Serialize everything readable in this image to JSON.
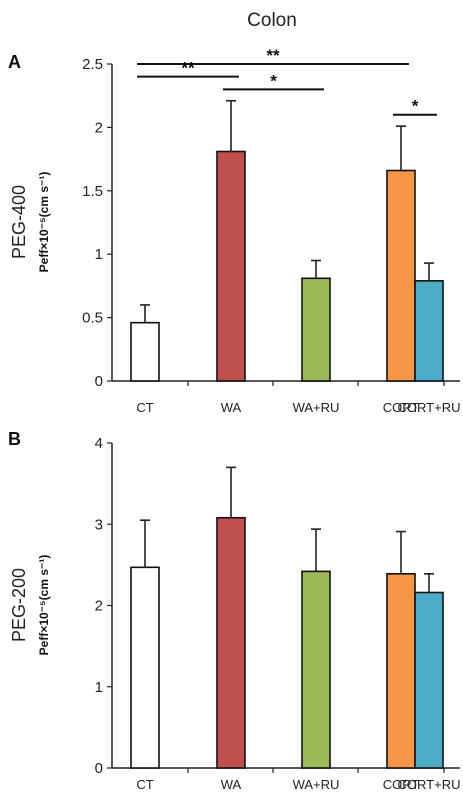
{
  "figure_title": "Colon",
  "chart_data": [
    {
      "type": "bar",
      "panel_label": "A",
      "ylabel_main": "PEG-400",
      "ylabel_unit": "Peff×10⁻⁵(cm s⁻¹)",
      "categories": [
        "CT",
        "WA",
        "WA+RU",
        "CORT",
        "CORT+RU"
      ],
      "values": [
        0.46,
        1.81,
        0.81,
        1.66,
        0.79
      ],
      "errors": [
        0.14,
        0.4,
        0.14,
        0.35,
        0.14
      ],
      "colors": [
        "#ffffff",
        "#c0504d",
        "#9bbb59",
        "#f79646",
        "#4bacc6"
      ],
      "ylim": [
        0,
        2.5
      ],
      "yticks": [
        "0",
        "0.5",
        "1",
        "1.5",
        "2",
        "2.5"
      ],
      "yticks_values": [
        0,
        0.5,
        1,
        1.5,
        2,
        2.5
      ],
      "significance": [
        {
          "from": 0,
          "to": 3,
          "label": "**",
          "level": 2.5
        },
        {
          "from": 0,
          "to": 1,
          "label": "**",
          "level": 2.4
        },
        {
          "from": 1,
          "to": 2,
          "label": "*",
          "level": 2.3
        },
        {
          "from": 3,
          "to": 4,
          "label": "*",
          "level": 2.1
        }
      ]
    },
    {
      "type": "bar",
      "panel_label": "B",
      "ylabel_main": "PEG-200",
      "ylabel_unit": "Peff×10⁻⁵(cm s⁻¹)",
      "categories": [
        "CT",
        "WA",
        "WA+RU",
        "CORT",
        "CORT+RU"
      ],
      "values": [
        2.47,
        3.08,
        2.42,
        2.39,
        2.16
      ],
      "errors": [
        0.58,
        0.62,
        0.52,
        0.52,
        0.23
      ],
      "colors": [
        "#ffffff",
        "#c0504d",
        "#9bbb59",
        "#f79646",
        "#4bacc6"
      ],
      "ylim": [
        0,
        4
      ],
      "yticks": [
        "0",
        "1",
        "2",
        "3",
        "4"
      ],
      "yticks_values": [
        0,
        1,
        2,
        3,
        4
      ],
      "significance": []
    }
  ]
}
